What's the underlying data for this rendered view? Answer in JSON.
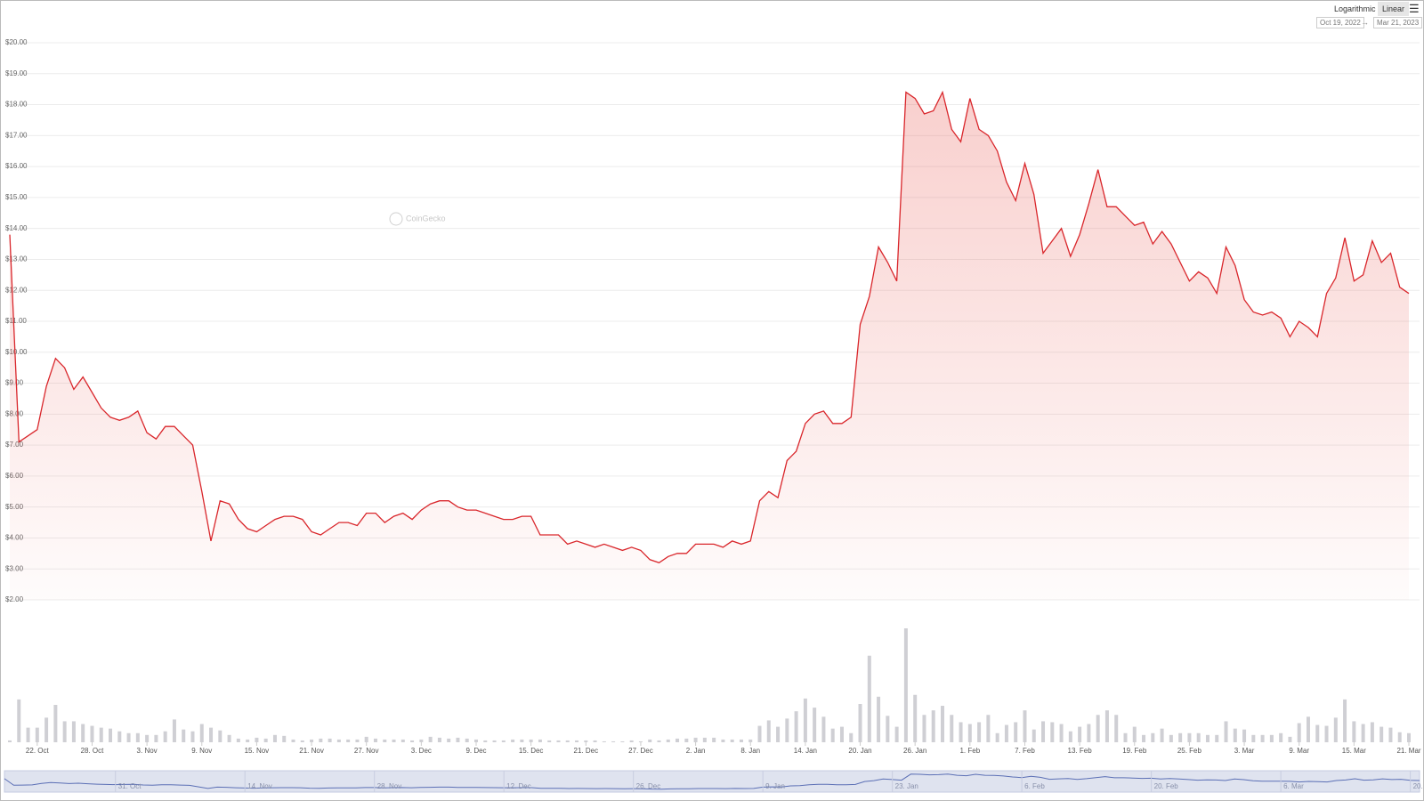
{
  "scale_buttons": [
    "Logarithmic",
    "Linear"
  ],
  "range": {
    "from": "Oct 19, 2022",
    "separator": "→",
    "to": "Mar 21, 2023"
  },
  "watermark": "CoinGecko",
  "chart_data": {
    "type": "area",
    "scale": "linear",
    "color": "#d9262b",
    "grid": true,
    "ylim": [
      2,
      20
    ],
    "yticks": [
      {
        "value": 2,
        "label": "$2.00"
      },
      {
        "value": 3,
        "label": "$3.00"
      },
      {
        "value": 4,
        "label": "$4.00"
      },
      {
        "value": 5,
        "label": "$5.00"
      },
      {
        "value": 6,
        "label": "$6.00"
      },
      {
        "value": 7,
        "label": "$7.00"
      },
      {
        "value": 8,
        "label": "$8.00"
      },
      {
        "value": 9,
        "label": "$9.00"
      },
      {
        "value": 10,
        "label": "$10.00"
      },
      {
        "value": 11,
        "label": "$11.00"
      },
      {
        "value": 12,
        "label": "$12.00"
      },
      {
        "value": 13,
        "label": "$13.00"
      },
      {
        "value": 14,
        "label": "$14.00"
      },
      {
        "value": 15,
        "label": "$15.00"
      },
      {
        "value": 16,
        "label": "$16.00"
      },
      {
        "value": 17,
        "label": "$17.00"
      },
      {
        "value": 18,
        "label": "$18.00"
      },
      {
        "value": 19,
        "label": "$19.00"
      },
      {
        "value": 20,
        "label": "$20.00"
      }
    ],
    "xlim": [
      "2022-10-19",
      "2023-03-21"
    ],
    "xticks": [
      {
        "value": "2022-10-22",
        "label": "22. Oct"
      },
      {
        "value": "2022-10-28",
        "label": "28. Oct"
      },
      {
        "value": "2022-11-03",
        "label": "3. Nov"
      },
      {
        "value": "2022-11-09",
        "label": "9. Nov"
      },
      {
        "value": "2022-11-15",
        "label": "15. Nov"
      },
      {
        "value": "2022-11-21",
        "label": "21. Nov"
      },
      {
        "value": "2022-11-27",
        "label": "27. Nov"
      },
      {
        "value": "2022-12-03",
        "label": "3. Dec"
      },
      {
        "value": "2022-12-09",
        "label": "9. Dec"
      },
      {
        "value": "2022-12-15",
        "label": "15. Dec"
      },
      {
        "value": "2022-12-21",
        "label": "21. Dec"
      },
      {
        "value": "2022-12-27",
        "label": "27. Dec"
      },
      {
        "value": "2023-01-02",
        "label": "2. Jan"
      },
      {
        "value": "2023-01-08",
        "label": "8. Jan"
      },
      {
        "value": "2023-01-14",
        "label": "14. Jan"
      },
      {
        "value": "2023-01-20",
        "label": "20. Jan"
      },
      {
        "value": "2023-01-26",
        "label": "26. Jan"
      },
      {
        "value": "2023-02-01",
        "label": "1. Feb"
      },
      {
        "value": "2023-02-07",
        "label": "7. Feb"
      },
      {
        "value": "2023-02-13",
        "label": "13. Feb"
      },
      {
        "value": "2023-02-19",
        "label": "19. Feb"
      },
      {
        "value": "2023-02-25",
        "label": "25. Feb"
      },
      {
        "value": "2023-03-03",
        "label": "3. Mar"
      },
      {
        "value": "2023-03-09",
        "label": "9. Mar"
      },
      {
        "value": "2023-03-15",
        "label": "15. Mar"
      },
      {
        "value": "2023-03-21",
        "label": "21. Mar"
      }
    ],
    "navigator_ticks": [
      {
        "value": "2022-10-31",
        "label": "31. Oct"
      },
      {
        "value": "2022-11-14",
        "label": "14. Nov"
      },
      {
        "value": "2022-11-28",
        "label": "28. Nov"
      },
      {
        "value": "2022-12-12",
        "label": "12. Dec"
      },
      {
        "value": "2022-12-26",
        "label": "26. Dec"
      },
      {
        "value": "2023-01-09",
        "label": "9. Jan"
      },
      {
        "value": "2023-01-23",
        "label": "23. Jan"
      },
      {
        "value": "2023-02-06",
        "label": "6. Feb"
      },
      {
        "value": "2023-02-20",
        "label": "20. Feb"
      },
      {
        "value": "2023-03-06",
        "label": "6. Mar"
      },
      {
        "value": "2023-03-20",
        "label": "20. ..."
      }
    ],
    "x": [
      "2022-10-19",
      "2022-10-20",
      "2022-10-21",
      "2022-10-22",
      "2022-10-23",
      "2022-10-24",
      "2022-10-25",
      "2022-10-26",
      "2022-10-27",
      "2022-10-28",
      "2022-10-29",
      "2022-10-30",
      "2022-10-31",
      "2022-11-01",
      "2022-11-02",
      "2022-11-03",
      "2022-11-04",
      "2022-11-05",
      "2022-11-06",
      "2022-11-07",
      "2022-11-08",
      "2022-11-09",
      "2022-11-10",
      "2022-11-11",
      "2022-11-12",
      "2022-11-13",
      "2022-11-14",
      "2022-11-15",
      "2022-11-16",
      "2022-11-17",
      "2022-11-18",
      "2022-11-19",
      "2022-11-20",
      "2022-11-21",
      "2022-11-22",
      "2022-11-23",
      "2022-11-24",
      "2022-11-25",
      "2022-11-26",
      "2022-11-27",
      "2022-11-28",
      "2022-11-29",
      "2022-11-30",
      "2022-12-01",
      "2022-12-02",
      "2022-12-03",
      "2022-12-04",
      "2022-12-05",
      "2022-12-06",
      "2022-12-07",
      "2022-12-08",
      "2022-12-09",
      "2022-12-10",
      "2022-12-11",
      "2022-12-12",
      "2022-12-13",
      "2022-12-14",
      "2022-12-15",
      "2022-12-16",
      "2022-12-17",
      "2022-12-18",
      "2022-12-19",
      "2022-12-20",
      "2022-12-21",
      "2022-12-22",
      "2022-12-23",
      "2022-12-24",
      "2022-12-25",
      "2022-12-26",
      "2022-12-27",
      "2022-12-28",
      "2022-12-29",
      "2022-12-30",
      "2022-12-31",
      "2023-01-01",
      "2023-01-02",
      "2023-01-03",
      "2023-01-04",
      "2023-01-05",
      "2023-01-06",
      "2023-01-07",
      "2023-01-08",
      "2023-01-09",
      "2023-01-10",
      "2023-01-11",
      "2023-01-12",
      "2023-01-13",
      "2023-01-14",
      "2023-01-15",
      "2023-01-16",
      "2023-01-17",
      "2023-01-18",
      "2023-01-19",
      "2023-01-20",
      "2023-01-21",
      "2023-01-22",
      "2023-01-23",
      "2023-01-24",
      "2023-01-25",
      "2023-01-26",
      "2023-01-27",
      "2023-01-28",
      "2023-01-29",
      "2023-01-30",
      "2023-01-31",
      "2023-02-01",
      "2023-02-02",
      "2023-02-03",
      "2023-02-04",
      "2023-02-05",
      "2023-02-06",
      "2023-02-07",
      "2023-02-08",
      "2023-02-09",
      "2023-02-10",
      "2023-02-11",
      "2023-02-12",
      "2023-02-13",
      "2023-02-14",
      "2023-02-15",
      "2023-02-16",
      "2023-02-17",
      "2023-02-18",
      "2023-02-19",
      "2023-02-20",
      "2023-02-21",
      "2023-02-22",
      "2023-02-23",
      "2023-02-24",
      "2023-02-25",
      "2023-02-26",
      "2023-02-27",
      "2023-02-28",
      "2023-03-01",
      "2023-03-02",
      "2023-03-03",
      "2023-03-04",
      "2023-03-05",
      "2023-03-06",
      "2023-03-07",
      "2023-03-08",
      "2023-03-09",
      "2023-03-10",
      "2023-03-11",
      "2023-03-12",
      "2023-03-13",
      "2023-03-14",
      "2023-03-15",
      "2023-03-16",
      "2023-03-17",
      "2023-03-18",
      "2023-03-19",
      "2023-03-20",
      "2023-03-21"
    ],
    "values": [
      13.8,
      7.1,
      7.3,
      7.5,
      8.9,
      9.8,
      9.5,
      8.8,
      9.2,
      8.7,
      8.2,
      7.9,
      7.8,
      7.9,
      8.1,
      7.4,
      7.2,
      7.6,
      7.6,
      7.3,
      7.0,
      5.5,
      3.9,
      5.2,
      5.1,
      4.6,
      4.3,
      4.2,
      4.4,
      4.6,
      4.7,
      4.7,
      4.6,
      4.2,
      4.1,
      4.3,
      4.5,
      4.5,
      4.4,
      4.8,
      4.8,
      4.5,
      4.7,
      4.8,
      4.6,
      4.9,
      5.1,
      5.2,
      5.2,
      5.0,
      4.9,
      4.9,
      4.8,
      4.7,
      4.6,
      4.6,
      4.7,
      4.7,
      4.1,
      4.1,
      4.1,
      3.8,
      3.9,
      3.8,
      3.7,
      3.8,
      3.7,
      3.6,
      3.7,
      3.6,
      3.3,
      3.2,
      3.4,
      3.5,
      3.5,
      3.8,
      3.8,
      3.8,
      3.7,
      3.9,
      3.8,
      3.9,
      5.2,
      5.5,
      5.3,
      6.5,
      6.8,
      7.7,
      8.0,
      8.1,
      7.7,
      7.7,
      7.9,
      10.9,
      11.8,
      13.4,
      12.9,
      12.3,
      18.4,
      18.2,
      17.7,
      17.8,
      18.4,
      17.2,
      16.8,
      18.2,
      17.2,
      17.0,
      16.5,
      15.5,
      14.9,
      16.1,
      15.1,
      13.2,
      13.6,
      14.0,
      13.1,
      13.8,
      14.8,
      15.9,
      14.7,
      14.7,
      14.4,
      14.1,
      14.2,
      13.5,
      13.9,
      13.5,
      12.9,
      12.3,
      12.6,
      12.4,
      11.9,
      13.4,
      12.8,
      11.7,
      11.3,
      11.2,
      11.3,
      11.1,
      10.5,
      11.0,
      10.8,
      10.5,
      11.9,
      12.4,
      13.7,
      12.3,
      12.5,
      13.6,
      12.9,
      13.2,
      12.1,
      11.9
    ],
    "volume": {
      "color": "#cfcfd4",
      "values": [
        2,
        47,
        16,
        16,
        27,
        41,
        23,
        23,
        20,
        18,
        16,
        15,
        12,
        10,
        10,
        8,
        8,
        12,
        25,
        14,
        12,
        20,
        16,
        13,
        8,
        4,
        3,
        5,
        4,
        8,
        7,
        3,
        2,
        3,
        4,
        4,
        3,
        3,
        3,
        6,
        4,
        3,
        3,
        3,
        2,
        3,
        6,
        5,
        4,
        5,
        4,
        3,
        2,
        2,
        2,
        3,
        3,
        3,
        3,
        2,
        2,
        2,
        2,
        2,
        2,
        1,
        1,
        1,
        2,
        1,
        3,
        2,
        3,
        4,
        4,
        5,
        5,
        5,
        3,
        3,
        3,
        3,
        18,
        24,
        17,
        26,
        34,
        48,
        38,
        28,
        15,
        17,
        10,
        42,
        95,
        50,
        29,
        17,
        125,
        52,
        30,
        35,
        40,
        30,
        22,
        20,
        22,
        30,
        10,
        19,
        22,
        35,
        14,
        23,
        22,
        20,
        12,
        17,
        20,
        30,
        35,
        30,
        10,
        17,
        8,
        10,
        15,
        8,
        10,
        10,
        10,
        8,
        8,
        23,
        15,
        14,
        8,
        8,
        8,
        10,
        6,
        21,
        28,
        19,
        18,
        27,
        47,
        23,
        20,
        22,
        17,
        16,
        11,
        10
      ]
    }
  }
}
